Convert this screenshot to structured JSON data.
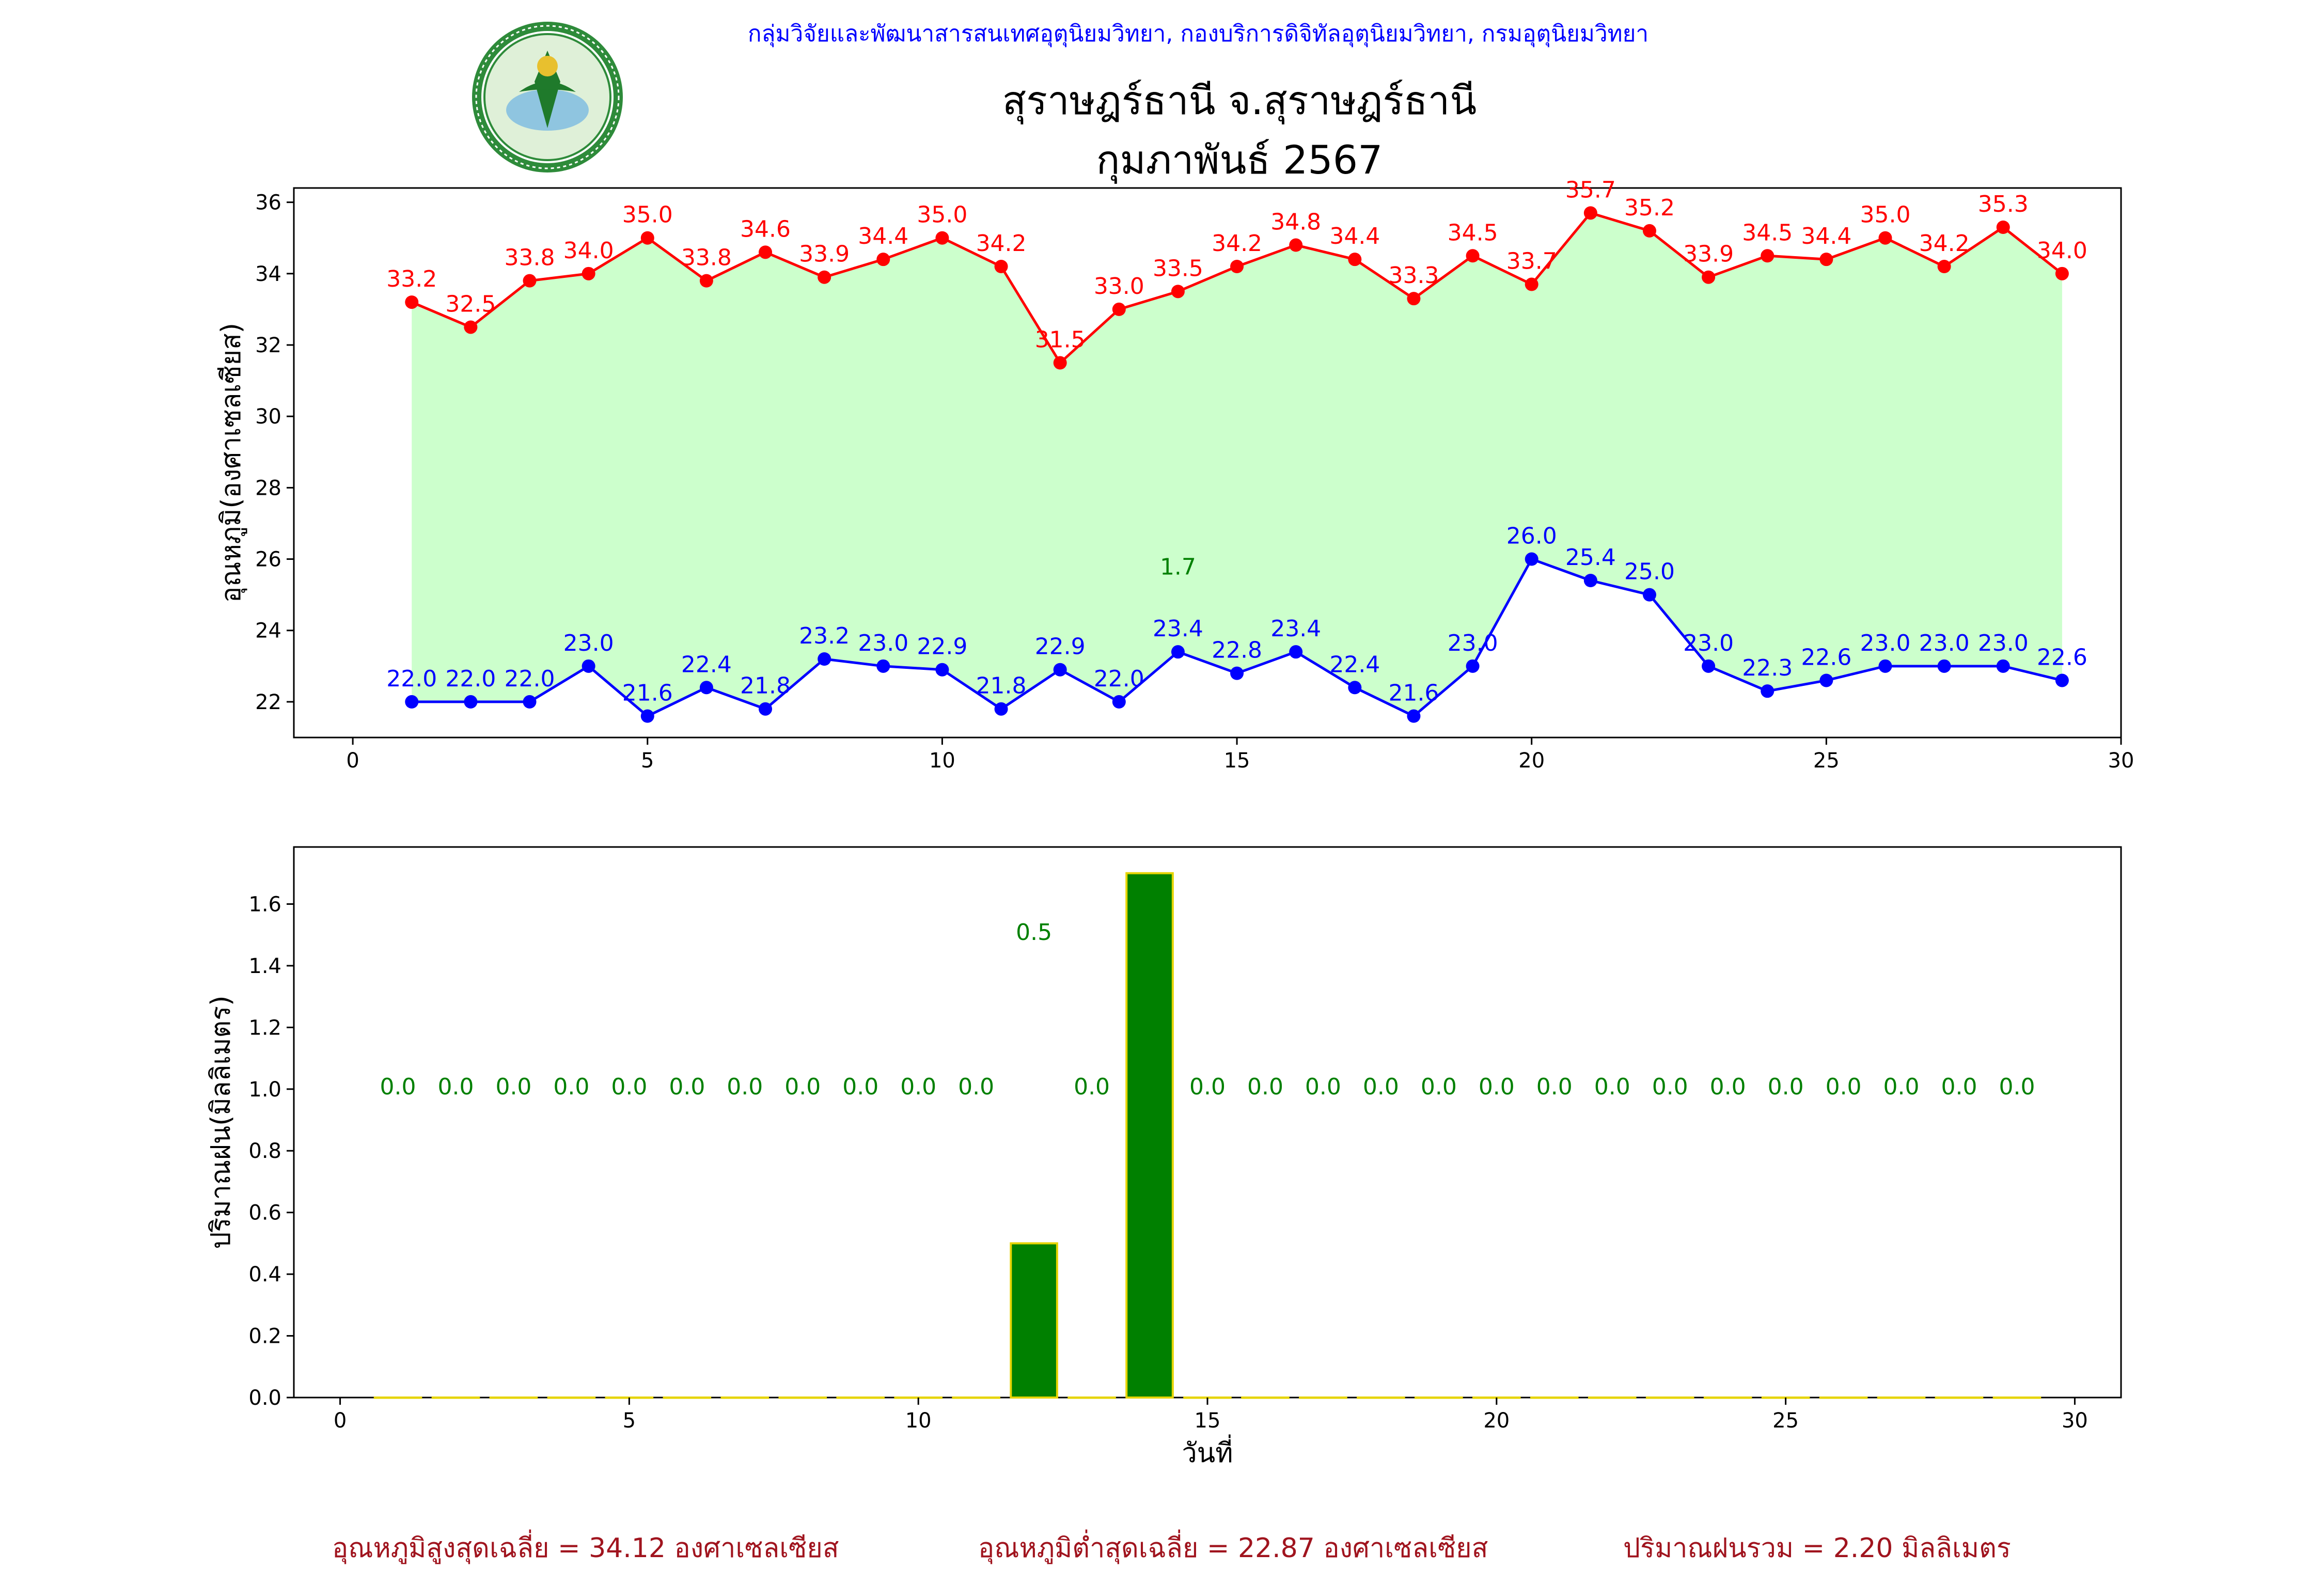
{
  "header": {
    "org_line": "กลุ่มวิจัยและพัฒนาสารสนเทศอุตุนิยมวิทยา, กองบริการดิจิทัลอุตุนิยมวิทยา, กรมอุตุนิยมวิทยา",
    "station": "สุราษฎร์ธานี จ.สุราษฎร์ธานี",
    "period": "กุมภาพันธ์ 2567",
    "logo_text_top": "กรมอุตุนิยมวิทยา",
    "logo_text_bottom": "METEOROLOGICAL DEPARTMENT"
  },
  "footer": {
    "avg_max": "อุณหภูมิสูงสุดเฉลี่ย = 34.12 องศาเซลเซียส",
    "avg_min": "อุณหภูมิต่ำสุดเฉลี่ย = 22.87 องศาเซลเซียส",
    "total_rain": "ปริมาณฝนรวม = 2.20 มิลลิเมตร"
  },
  "colors": {
    "max": "#ff0000",
    "min": "#0000ff",
    "fill": "#ccffcc",
    "rain": "#008000",
    "rain_edge": "#e6d400",
    "footer": "#a0141e"
  },
  "chart_data": [
    {
      "type": "line",
      "ylabel": "อุณหภูมิ(องศาเซลเซียส)",
      "xlabel": "",
      "xlim": [
        -1,
        30
      ],
      "ylim": [
        21,
        36.4
      ],
      "xticks": [
        0,
        5,
        10,
        15,
        20,
        25,
        30
      ],
      "yticks": [
        22,
        24,
        26,
        28,
        30,
        32,
        34,
        36
      ],
      "x": [
        1,
        2,
        3,
        4,
        5,
        6,
        7,
        8,
        9,
        10,
        11,
        12,
        13,
        14,
        15,
        16,
        17,
        18,
        19,
        20,
        21,
        22,
        23,
        24,
        25,
        26,
        27,
        28,
        29
      ],
      "series": [
        {
          "values": [
            33.2,
            32.5,
            33.8,
            34.0,
            35.0,
            33.8,
            34.6,
            33.9,
            34.4,
            35.0,
            34.2,
            31.5,
            33.0,
            33.5,
            34.2,
            34.8,
            34.4,
            33.3,
            34.5,
            33.7,
            35.7,
            35.2,
            33.9,
            34.5,
            34.4,
            35.0,
            34.2,
            35.3,
            34.0
          ]
        },
        {
          "values": [
            22.0,
            22.0,
            22.0,
            23.0,
            21.6,
            22.4,
            21.8,
            23.2,
            23.0,
            22.9,
            21.8,
            22.9,
            22.0,
            23.4,
            22.8,
            23.4,
            22.4,
            21.6,
            23.0,
            26.0,
            25.4,
            25.0,
            23.0,
            22.3,
            22.6,
            23.0,
            23.0,
            23.0,
            22.6
          ]
        }
      ],
      "annotations": [
        {
          "x": 14,
          "y": 25.8,
          "text": "1.7"
        }
      ]
    },
    {
      "type": "bar",
      "ylabel": "ปริมาณฝน(มิลลิเมตร)",
      "xlabel": "วันที่",
      "xlim": [
        -0.8,
        30.8
      ],
      "ylim": [
        0,
        1.785
      ],
      "xticks": [
        0,
        5,
        10,
        15,
        20,
        25,
        30
      ],
      "yticks": [
        "0.0",
        "0.2",
        "0.4",
        "0.6",
        "0.8",
        "1.0",
        "1.2",
        "1.4",
        "1.6"
      ],
      "x": [
        1,
        2,
        3,
        4,
        5,
        6,
        7,
        8,
        9,
        10,
        11,
        12,
        13,
        14,
        15,
        16,
        17,
        18,
        19,
        20,
        21,
        22,
        23,
        24,
        25,
        26,
        27,
        28,
        29
      ],
      "values": [
        0.0,
        0.0,
        0.0,
        0.0,
        0.0,
        0.0,
        0.0,
        0.0,
        0.0,
        0.0,
        0.0,
        0.5,
        0.0,
        1.7,
        0.0,
        0.0,
        0.0,
        0.0,
        0.0,
        0.0,
        0.0,
        0.0,
        0.0,
        0.0,
        0.0,
        0.0,
        0.0,
        0.0,
        0.0
      ],
      "labels": [
        "0.0",
        "0.0",
        "0.0",
        "0.0",
        "0.0",
        "0.0",
        "0.0",
        "0.0",
        "0.0",
        "0.0",
        "0.0",
        "0.5",
        "0.0",
        "",
        "0.0",
        "0.0",
        "0.0",
        "0.0",
        "0.0",
        "0.0",
        "0.0",
        "0.0",
        "0.0",
        "0.0",
        "0.0",
        "0.0",
        "0.0",
        "0.0",
        "0.0"
      ]
    }
  ]
}
